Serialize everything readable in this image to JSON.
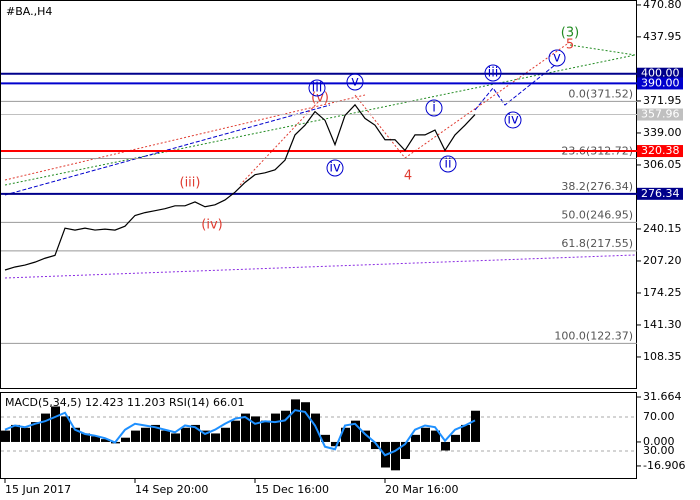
{
  "chart_data": [
    {
      "type": "line",
      "title": "#BA.,H4",
      "categories": [
        "15 Jun 2017",
        null,
        null,
        null,
        null,
        null,
        null,
        null,
        null,
        null,
        null,
        null,
        null,
        "14 Sep 20:00",
        null,
        null,
        null,
        null,
        null,
        null,
        null,
        null,
        null,
        null,
        null,
        "15 Dec 16:00",
        null,
        null,
        null,
        null,
        null,
        null,
        null,
        null,
        null,
        null,
        null,
        null,
        "20 Mar 16:00",
        null,
        null,
        null,
        null,
        null,
        null,
        null,
        null,
        null
      ],
      "series": [
        {
          "color": "#000000",
          "values": [
            197.9,
            201,
            203,
            206,
            210,
            213,
            241,
            239,
            241,
            239,
            240,
            239,
            243,
            254,
            257,
            259,
            261,
            264,
            264,
            268,
            263,
            265,
            270,
            278,
            288,
            296,
            298,
            301,
            311,
            337,
            347,
            361,
            352,
            327,
            357,
            368,
            354,
            347,
            332,
            332,
            321,
            337,
            337,
            342,
            321,
            337,
            347,
            357.96
          ]
        }
      ],
      "ylim": [
        76.4,
        475.9
      ],
      "yticks": [
        {
          "value": 470.8,
          "label": "470.80"
        },
        437.95,
        371.95,
        {
          "value": 339,
          "label": "339.00"
        },
        306.05,
        240.15,
        {
          "value": 207.2,
          "label": "207.20"
        },
        174.25,
        {
          "value": 141.3,
          "label": "141.30"
        },
        108.35
      ],
      "levels": [
        {
          "value": 400,
          "label": "400.00",
          "color": "#00008b"
        },
        {
          "value": 390,
          "label": "390.00",
          "color": "#0000cd"
        },
        {
          "value": 357.96,
          "label": "357.96",
          "color": "#c0c0c0"
        },
        {
          "value": 320.38,
          "label": "320.38",
          "color": "#ff0000"
        },
        {
          "value": 276.34,
          "label": "276.34",
          "color": "#00008b"
        }
      ],
      "fib_levels": [
        {
          "value": 371.52,
          "label": "0.0(371.52)"
        },
        {
          "value": 312.72,
          "label": "23.6(312.72)"
        },
        {
          "value": 276.34,
          "label": "38.2(276.34)"
        },
        {
          "value": 246.95,
          "label": "50.0(246.95)"
        },
        {
          "value": 217.55,
          "label": "61.8(217.55)"
        },
        {
          "value": 122.37,
          "label": "100.0(122.37)"
        }
      ],
      "annotations": [
        {
          "text": "(3)",
          "color": "#228b22"
        },
        {
          "text": "5",
          "color": "#e03c31"
        },
        {
          "text": "(v)",
          "color": "#e03c31"
        },
        {
          "text": "(iii)",
          "color": "#e03c31"
        },
        {
          "text": "(iv)",
          "color": "#e03c31"
        },
        {
          "text": "4",
          "color": "#e03c31"
        },
        {
          "text": "iii",
          "color": "#0000cd"
        },
        {
          "text": "v",
          "color": "#0000cd"
        },
        {
          "text": "iv",
          "color": "#0000cd"
        },
        {
          "text": "i",
          "color": "#0000cd"
        },
        {
          "text": "ii",
          "color": "#0000cd"
        },
        {
          "text": "iii",
          "color": "#0000cd"
        },
        {
          "text": "iv",
          "color": "#0000cd"
        },
        {
          "text": "v",
          "color": "#0000cd"
        }
      ]
    },
    {
      "type": "bar",
      "title": "MACD(5,34,5) 12.423 11.203 RSI(14) 66.01",
      "series": [
        {
          "color": "#000000",
          "values": [
            8,
            12,
            10,
            14,
            20,
            25,
            18,
            10,
            6,
            4,
            2,
            -1,
            3,
            8,
            10,
            12,
            8,
            6,
            10,
            12,
            8,
            6,
            10,
            15,
            20,
            18,
            15,
            20,
            22,
            30,
            28,
            20,
            5,
            -3,
            10,
            15,
            8,
            -5,
            -18,
            -20,
            -12,
            5,
            10,
            8,
            -6,
            5,
            12,
            22
          ]
        },
        {
          "color": "#1e90ff",
          "axis": "y2",
          "values": [
            55,
            60,
            58,
            62,
            65,
            70,
            75,
            55,
            50,
            48,
            45,
            40,
            55,
            62,
            60,
            58,
            55,
            52,
            60,
            58,
            50,
            55,
            62,
            68,
            70,
            62,
            65,
            64,
            66,
            78,
            76,
            60,
            35,
            32,
            60,
            62,
            50,
            40,
            25,
            30,
            38,
            55,
            60,
            58,
            42,
            55,
            60,
            66.01
          ]
        }
      ],
      "ylim": [
        -25.4,
        35.2
      ],
      "yticks": [
        31.664,
        {
          "value": 0,
          "label": "0.000"
        },
        -16.906
      ],
      "y2lim": [
        -1.8,
        99.4
      ],
      "y2ticks": [
        {
          "value": 70,
          "label": "70.00"
        },
        {
          "value": 30,
          "label": "30.00"
        }
      ]
    }
  ]
}
